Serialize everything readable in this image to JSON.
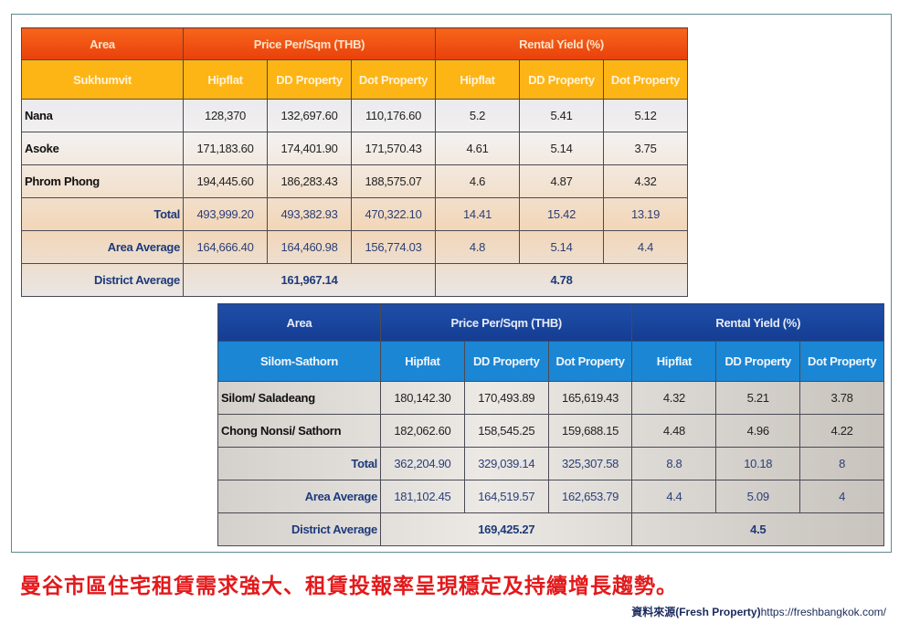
{
  "tables": [
    {
      "id": "sukhumvit",
      "header_area": "Area",
      "header_price": "Price Per/Sqm (THB)",
      "header_yield": "Rental Yield (%)",
      "district": "Sukhumvit",
      "sources": [
        "Hipflat",
        "DD Property",
        "Dot Property",
        "Hipflat",
        "DD Property",
        "Dot Property"
      ],
      "rows": [
        {
          "label": "Nana",
          "values": [
            "128,370",
            "132,697.60",
            "110,176.60",
            "5.2",
            "5.41",
            "5.12"
          ]
        },
        {
          "label": "Asoke",
          "values": [
            "171,183.60",
            "174,401.90",
            "171,570.43",
            "4.61",
            "5.14",
            "3.75"
          ]
        },
        {
          "label": "Phrom Phong",
          "values": [
            "194,445.60",
            "186,283.43",
            "188,575.07",
            "4.6",
            "4.87",
            "4.32"
          ]
        }
      ],
      "summary_rows": [
        {
          "label": "Total",
          "values": [
            "493,999.20",
            "493,382.93",
            "470,322.10",
            "14.41",
            "15.42",
            "13.19"
          ]
        },
        {
          "label": "Area Average",
          "values": [
            "164,666.40",
            "164,460.98",
            "156,774.03",
            "4.8",
            "5.14",
            "4.4"
          ]
        }
      ],
      "district_average": {
        "label": "District Average",
        "price": "161,967.14",
        "yield": "4.78"
      }
    },
    {
      "id": "silom-sathorn",
      "header_area": "Area",
      "header_price": "Price Per/Sqm (THB)",
      "header_yield": "Rental Yield (%)",
      "district": "Silom-Sathorn",
      "sources": [
        "Hipflat",
        "DD Property",
        "Dot Property",
        "Hipflat",
        "DD Property",
        "Dot Property"
      ],
      "rows": [
        {
          "label": "Silom/ Saladeang",
          "values": [
            "180,142.30",
            "170,493.89",
            "165,619.43",
            "4.32",
            "5.21",
            "3.78"
          ]
        },
        {
          "label": "Chong Nonsi/ Sathorn",
          "values": [
            "182,062.60",
            "158,545.25",
            "159,688.15",
            "4.48",
            "4.96",
            "4.22"
          ]
        }
      ],
      "summary_rows": [
        {
          "label": "Total",
          "values": [
            "362,204.90",
            "329,039.14",
            "325,307.58",
            "8.8",
            "10.18",
            "8"
          ]
        },
        {
          "label": "Area Average",
          "values": [
            "181,102.45",
            "164,519.57",
            "162,653.79",
            "4.4",
            "5.09",
            "4"
          ]
        }
      ],
      "district_average": {
        "label": "District Average",
        "price": "169,425.27",
        "yield": "4.5"
      }
    }
  ],
  "caption": "曼谷市區住宅租賃需求強大、租賃投報率呈現穩定及持續增長趨勢。",
  "source": {
    "prefix": "資料來源",
    "name": "(Fresh Property)",
    "url": "https://freshbangkok.com/"
  },
  "colors": {
    "caption": "#e3191b",
    "sukhumvit_header": "#f8651a",
    "sukhumvit_subheader": "#fdb515",
    "silom_header": "#1f4ea8",
    "silom_subheader": "#1b86d4"
  }
}
